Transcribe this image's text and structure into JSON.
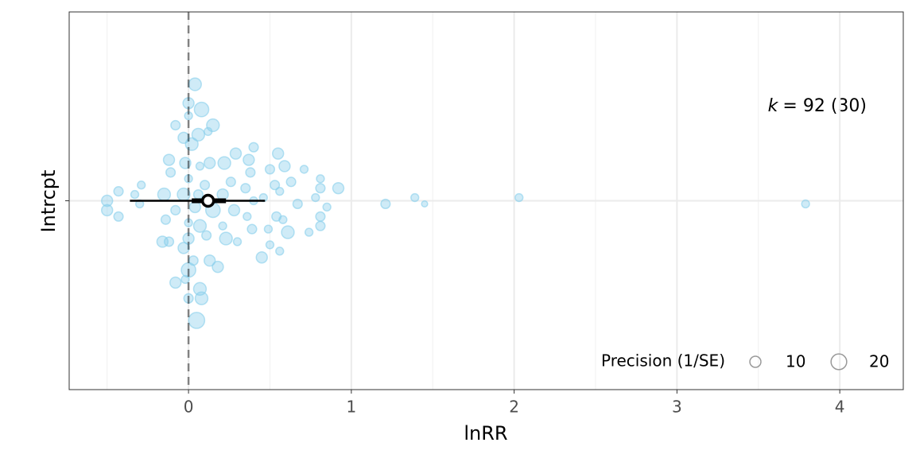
{
  "chart_data": {
    "type": "orchard",
    "x_label": "lnRR",
    "categories": [
      "Intrcpt"
    ],
    "annotation": {
      "italic": "k",
      "text": "= 92 (30)"
    },
    "xlim": [
      -0.733,
      4.39
    ],
    "xticks": [
      0,
      1,
      2,
      3,
      4
    ],
    "xminor": [
      -0.5,
      0.5,
      1.5,
      2.5,
      3.5
    ],
    "ylim": [
      -0.6,
      0.6
    ],
    "grid": true,
    "ref_line": 0,
    "point_color": "#87ceeb",
    "points": {
      "x": [
        0.04,
        0,
        0.08,
        -0.08,
        0,
        0.15,
        -0.03,
        0.06,
        0.12,
        0.02,
        0.4,
        0.29,
        0.55,
        -0.12,
        -0.02,
        0.07,
        0.13,
        0.22,
        0.37,
        0.5,
        0.59,
        0.71,
        -0.11,
        0,
        0.38,
        0.81,
        -0.29,
        -0.43,
        0.1,
        0.26,
        0.35,
        0.53,
        0.63,
        0.81,
        0.92,
        -0.33,
        -0.15,
        -0.03,
        0.21,
        0.56,
        0.78,
        -0.5,
        0.06,
        0.4,
        0.46,
        0.67,
        0.85,
        1.21,
        1.39,
        1.45,
        2.03,
        3.79,
        -0.5,
        -0.3,
        0.04,
        0.15,
        0.28,
        -0.43,
        -0.08,
        0.36,
        0.54,
        0.81,
        -0.14,
        0.58,
        0,
        0.21,
        0.07,
        0.39,
        0.49,
        0.61,
        0.81,
        0.74,
        -0.16,
        -0.12,
        0,
        0.11,
        0.23,
        0.3,
        0.5,
        -0.03,
        0.45,
        0.56,
        0.03,
        0.13,
        0.18,
        0,
        -0.08,
        -0.02,
        0.07,
        0.08,
        0,
        0.05
      ],
      "y": [
        0.37,
        0.31,
        0.29,
        0.24,
        0.27,
        0.24,
        0.2,
        0.21,
        0.22,
        0.18,
        0.17,
        0.15,
        0.15,
        0.13,
        0.12,
        0.11,
        0.12,
        0.12,
        0.13,
        0.1,
        0.11,
        0.1,
        0.09,
        0.07,
        0.09,
        0.07,
        0.05,
        0.03,
        0.05,
        0.06,
        0.04,
        0.05,
        0.06,
        0.04,
        0.04,
        0.02,
        0.02,
        0.02,
        0.02,
        0.03,
        0.01,
        0,
        0.02,
        0,
        0.01,
        -0.01,
        -0.02,
        -0.01,
        0.01,
        -0.01,
        0.01,
        -0.01,
        -0.03,
        -0.01,
        -0.02,
        -0.03,
        -0.03,
        -0.05,
        -0.03,
        -0.05,
        -0.05,
        -0.05,
        -0.06,
        -0.06,
        -0.07,
        -0.08,
        -0.08,
        -0.09,
        -0.09,
        -0.1,
        -0.08,
        -0.1,
        -0.13,
        -0.13,
        -0.12,
        -0.11,
        -0.12,
        -0.13,
        -0.14,
        -0.15,
        -0.18,
        -0.16,
        -0.19,
        -0.19,
        -0.21,
        -0.22,
        -0.26,
        -0.25,
        -0.28,
        -0.31,
        -0.31,
        -0.38
      ],
      "size": [
        13,
        10,
        17,
        7,
        5,
        13,
        10,
        13,
        5,
        13,
        7,
        10,
        10,
        10,
        10,
        5,
        10,
        13,
        10,
        7,
        10,
        5,
        7,
        5,
        7,
        5,
        5,
        7,
        7,
        7,
        7,
        7,
        7,
        7,
        10,
        5,
        13,
        13,
        10,
        5,
        5,
        10,
        7,
        5,
        5,
        7,
        5,
        7,
        5,
        3,
        5,
        5,
        10,
        5,
        10,
        17,
        10,
        7,
        7,
        5,
        7,
        7,
        7,
        5,
        5,
        5,
        13,
        7,
        5,
        13,
        7,
        5,
        10,
        7,
        10,
        7,
        13,
        5,
        5,
        10,
        10,
        5,
        7,
        10,
        10,
        17,
        10,
        5,
        13,
        13,
        7,
        21
      ]
    },
    "estimate": 0.12,
    "ci": [
      0.02,
      0.23
    ],
    "pi": [
      -0.36,
      0.47
    ],
    "size_legend": {
      "title": "Precision (1/SE)",
      "values": [
        10,
        20
      ]
    }
  }
}
